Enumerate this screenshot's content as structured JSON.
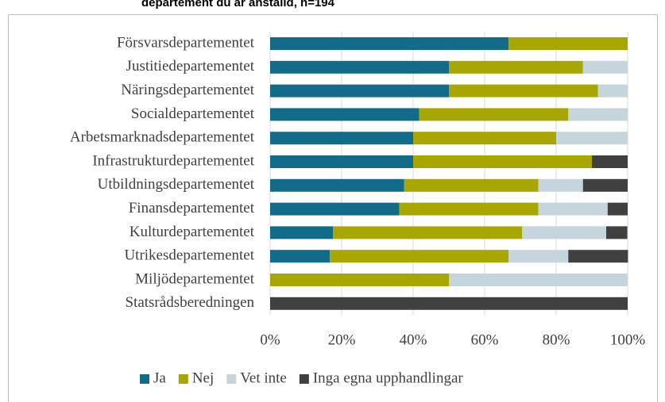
{
  "chart_data": {
    "type": "stacked_bar_horizontal",
    "title": "departement du är anställd, n=194",
    "categories": [
      "Försvarsdepartementet",
      "Justitiedepartementet",
      "Näringsdepartementet",
      "Socialdepartementet",
      "Arbetsmarknadsdepartementet",
      "Infrastrukturdepartementet",
      "Utbildningsdepartementet",
      "Finansdepartementet",
      "Kulturdepartementet",
      "Utrikesdepartementet",
      "Miljödepartementet",
      "Statsrådsberedningen"
    ],
    "series": [
      {
        "name": "Ja",
        "color": "#136b8a",
        "values": [
          66.7,
          50,
          50,
          41.7,
          40,
          40,
          37.5,
          36.1,
          17.6,
          16.7,
          0,
          0
        ]
      },
      {
        "name": "Nej",
        "color": "#a8a600",
        "values": [
          33.3,
          37.5,
          41.7,
          41.7,
          40,
          50,
          37.5,
          38.9,
          52.9,
          50,
          50,
          0
        ]
      },
      {
        "name": "Vet inte",
        "color": "#c4d6dc",
        "values": [
          0,
          12.5,
          8.3,
          16.7,
          20,
          0,
          12.5,
          19.4,
          23.5,
          16.7,
          50,
          0
        ]
      },
      {
        "name": "Inga egna upphandlingar",
        "color": "#404040",
        "values": [
          0,
          0,
          0,
          0,
          0,
          10,
          12.5,
          5.6,
          5.9,
          16.7,
          0,
          100
        ]
      }
    ],
    "xlim": [
      0,
      100
    ],
    "xticks": [
      {
        "value": 0,
        "label": "0%"
      },
      {
        "value": 20,
        "label": "20%"
      },
      {
        "value": 40,
        "label": "40%"
      },
      {
        "value": 60,
        "label": "60%"
      },
      {
        "value": 80,
        "label": "80%"
      },
      {
        "value": 100,
        "label": "100%"
      }
    ],
    "grid": true,
    "legend": "bottom"
  }
}
